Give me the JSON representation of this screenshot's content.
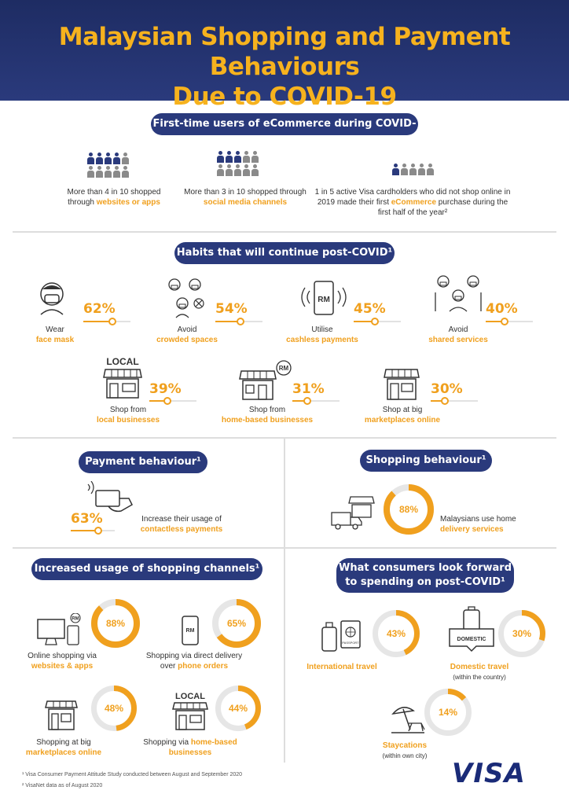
{
  "header": {
    "title_line1": "Malaysian Shopping and Payment Behaviours",
    "title_line2": "Due to COVID-19"
  },
  "ecommerce": {
    "heading": "First-time users of eCommerce during COVID-19¹",
    "stats": [
      {
        "text_before": "More than 4 in 10 shopped through ",
        "highlight": "websites or apps",
        "text_after": ""
      },
      {
        "text_before": "More than 3 in 10 shopped through ",
        "highlight": "social media channels",
        "text_after": ""
      },
      {
        "text_before": "1 in 5 active Visa cardholders who did not shop online in 2019 made their first ",
        "highlight": "eCommerce",
        "text_after": " purchase during the first half of the year²"
      }
    ]
  },
  "habits": {
    "heading": "Habits that will continue post-COVID¹",
    "items": [
      {
        "line1": "Wear",
        "line2": "face mask",
        "percent_label": "62%",
        "percent": 62
      },
      {
        "line1": "Avoid",
        "line2": "crowded spaces",
        "percent_label": "54%",
        "percent": 54
      },
      {
        "line1": "Utilise",
        "line2": "cashless payments",
        "percent_label": "45%",
        "percent": 45
      },
      {
        "line1": "Avoid",
        "line2": "shared services",
        "percent_label": "40%",
        "percent": 40
      },
      {
        "line1": "Shop from",
        "line2": "local businesses",
        "percent_label": "39%",
        "percent": 39
      },
      {
        "line1": "Shop from",
        "line2": "home-based businesses",
        "percent_label": "31%",
        "percent": 31
      },
      {
        "line1": "Shop at big",
        "line2": "marketplaces online",
        "percent_label": "30%",
        "percent": 30
      }
    ],
    "icon_text": {
      "rm": "RM",
      "local": "LOCAL"
    }
  },
  "payment": {
    "heading": "Payment behaviour¹",
    "percent_label": "63%",
    "percent": 63,
    "line1": "Increase their usage of",
    "line2": "contactless payments"
  },
  "shopping": {
    "heading": "Shopping behaviour¹",
    "percent_label": "88%",
    "percent": 88,
    "line1": "Malaysians use home",
    "line2": "delivery services"
  },
  "channels": {
    "heading": "Increased usage of shopping channels¹",
    "items": [
      {
        "line1": "Online shopping via",
        "line2": "websites & apps",
        "percent_label": "88%",
        "percent": 88
      },
      {
        "line1": "Shopping via direct delivery",
        "line2_before": "over ",
        "line2": "phone orders",
        "percent_label": "65%",
        "percent": 65
      },
      {
        "line1": "Shopping at big",
        "line2": "marketplaces online",
        "percent_label": "48%",
        "percent": 48
      },
      {
        "line1_before": "Shopping via ",
        "line1": "home-based",
        "line2": "businesses",
        "percent_label": "44%",
        "percent": 44
      }
    ]
  },
  "spending": {
    "heading_line1": "What consumers look forward",
    "heading_line2": "to spending on post-COVID¹",
    "items": [
      {
        "label": "International travel",
        "sub": "",
        "percent_label": "43%",
        "percent": 43
      },
      {
        "label": "Domestic travel",
        "sub": "(within the country)",
        "percent_label": "30%",
        "percent": 30
      },
      {
        "label": "Staycations",
        "sub": "(within own city)",
        "percent_label": "14%",
        "percent": 14
      }
    ],
    "domestic_tag": "DOMESTIC",
    "passport_tag": "PASSPORT"
  },
  "footnotes": [
    "¹  Visa Consumer Payment Attitude Study conducted between August and September 2020",
    "²  VisaNet data as of August 2020"
  ],
  "logo": "VISA",
  "colors": {
    "navy": "#2a3a7c",
    "accent": "#f0a01e",
    "ring_track": "#e6e6e6"
  }
}
